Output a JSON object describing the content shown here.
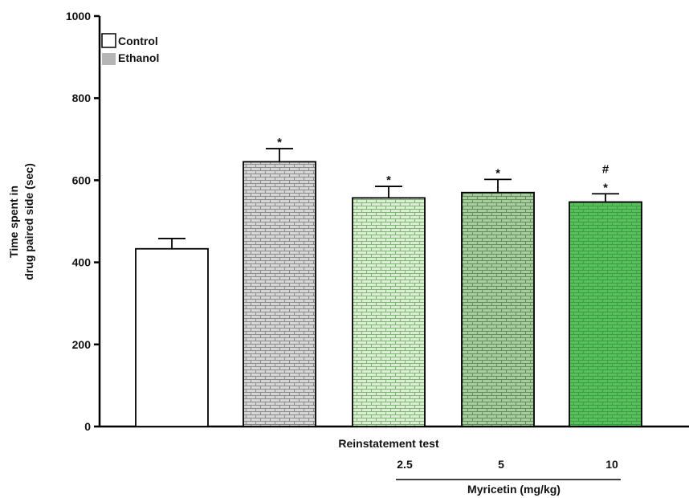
{
  "chart_data": {
    "type": "bar",
    "title": "",
    "ylabel_lines": [
      "Time spent in",
      "drug paired side (sec)"
    ],
    "xlabel": "Reinstatement test",
    "ylim": [
      0,
      1000
    ],
    "yticks": [
      0,
      200,
      400,
      600,
      800,
      1000
    ],
    "grid": false,
    "legend_position": "top-left",
    "legend": [
      {
        "label": "Control",
        "color": "#ffffff"
      },
      {
        "label": "Ethanol",
        "color": "#b5b5b5"
      }
    ],
    "bars": [
      {
        "value": 433,
        "error": 25,
        "dose_label": "",
        "annotation": [],
        "fill": "#ffffff",
        "pattern_color": "",
        "pattern": "none"
      },
      {
        "value": 645,
        "error": 32,
        "dose_label": "",
        "annotation": [
          "*"
        ],
        "fill": "#d6d6d6",
        "pattern_color": "#8a8a8a",
        "pattern": "brick"
      },
      {
        "value": 557,
        "error": 28,
        "dose_label": "2.5",
        "annotation": [
          "*"
        ],
        "fill": "#dcefd6",
        "pattern_color": "#7fb574",
        "pattern": "brick"
      },
      {
        "value": 570,
        "error": 32,
        "dose_label": "5",
        "annotation": [
          "*"
        ],
        "fill": "#a9cba0",
        "pattern_color": "#628f58",
        "pattern": "brick"
      },
      {
        "value": 547,
        "error": 20,
        "dose_label": "10",
        "annotation": [
          "#",
          "*"
        ],
        "fill": "#56c15a",
        "pattern_color": "#3f9a43",
        "pattern": "brick"
      }
    ],
    "treatment_label": "Myricetin (mg/kg)"
  }
}
